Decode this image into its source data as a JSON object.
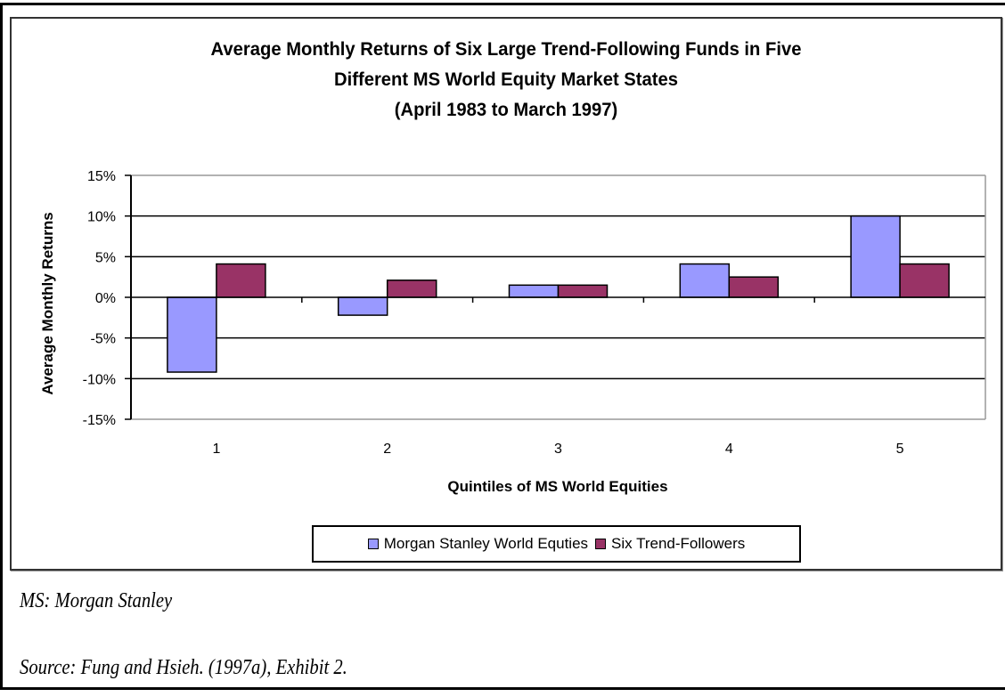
{
  "chart_data": {
    "type": "bar",
    "title": [
      "Average Monthly Returns of Six Large Trend-Following Funds in Five",
      "Different MS World Equity Market States",
      "(April 1983 to March 1997)"
    ],
    "xlabel": "Quintiles of MS World Equities",
    "ylabel": "Average Monthly Returns",
    "categories": [
      "1",
      "2",
      "3",
      "4",
      "5"
    ],
    "series": [
      {
        "name": "Morgan Stanley World Equties",
        "color": "#9999ff",
        "values": [
          -9.2,
          -2.2,
          1.5,
          4.1,
          10.0
        ]
      },
      {
        "name": "Six Trend-Followers",
        "color": "#993366",
        "values": [
          4.1,
          2.1,
          1.5,
          2.5,
          4.1
        ]
      }
    ],
    "ylim": [
      -15,
      15
    ],
    "yticks": [
      15,
      10,
      5,
      0,
      -5,
      -10,
      -15
    ],
    "ytick_labels": [
      "15%",
      "10%",
      "5%",
      "0%",
      "-5%",
      "-10%",
      "-15%"
    ],
    "grid": true,
    "legend_position": "bottom"
  },
  "notes": {
    "abbreviation": "MS:  Morgan Stanley",
    "source": "Source:  Fung and  Hsieh. (1997a), Exhibit 2."
  }
}
